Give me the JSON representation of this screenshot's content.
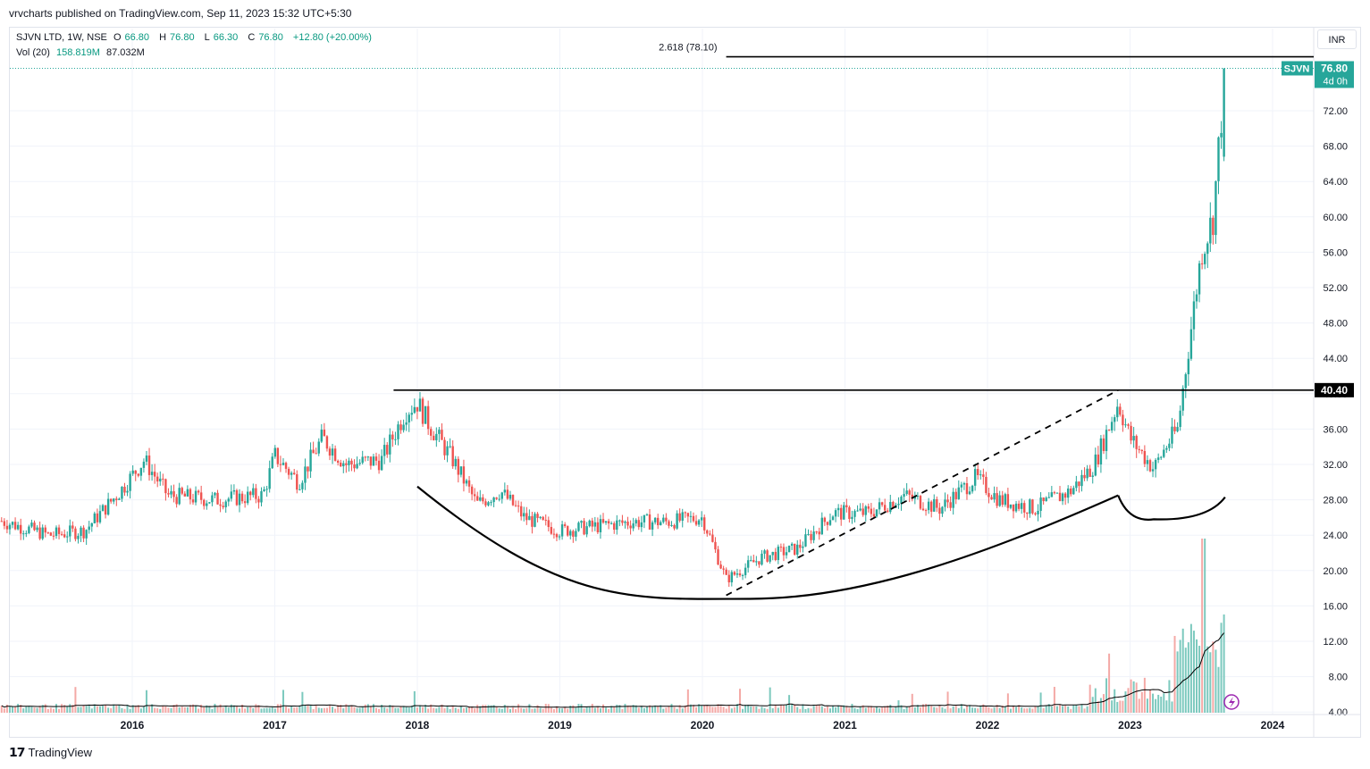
{
  "header": {
    "published": "vrvcharts published on TradingView.com, Sep 11, 2023 15:32 UTC+5:30"
  },
  "legend": {
    "symbol": "SJVN LTD, 1W, NSE",
    "open_label": "O",
    "open": "66.80",
    "high_label": "H",
    "high": "76.80",
    "low_label": "L",
    "low": "66.30",
    "close_label": "C",
    "close": "76.80",
    "change": "+12.80 (+20.00%)",
    "vol_label": "Vol (20)",
    "vol_value": "158.819M",
    "vol_ma": "87.032M"
  },
  "currency": "INR",
  "price_tag": {
    "symbol": "SJVN",
    "price": "76.80",
    "countdown": "4d 0h"
  },
  "level_tag": "40.40",
  "fib_label": "2.618 (78.10)",
  "footer": {
    "brand": "TradingView"
  },
  "colors": {
    "up": "#26a69a",
    "down": "#ef5350",
    "vol_up": "#7cc9be",
    "vol_down": "#f4a9a6",
    "line": "#000000",
    "grid": "#f0f3fa"
  },
  "chart_data": {
    "type": "candlestick",
    "timeframe": "1W",
    "x_ticks": [
      "2016",
      "2017",
      "2018",
      "2019",
      "2020",
      "2021",
      "2022",
      "2023",
      "2024"
    ],
    "y_ticks": [
      "4.00",
      "8.00",
      "12.00",
      "16.00",
      "20.00",
      "24.00",
      "28.00",
      "32.00",
      "36.00",
      "40.00",
      "44.00",
      "48.00",
      "52.00",
      "56.00",
      "60.00",
      "64.00",
      "68.00",
      "72.00"
    ],
    "ylim": [
      4,
      78.1
    ],
    "close_path": [
      [
        "2015-02",
        25.6
      ],
      [
        "2015-06",
        24.0
      ],
      [
        "2015-09",
        24.5
      ],
      [
        "2015-12",
        29.0
      ],
      [
        "2016-02",
        32.5
      ],
      [
        "2016-04",
        28.5
      ],
      [
        "2016-08",
        28.0
      ],
      [
        "2016-12",
        28.5
      ],
      [
        "2017-01",
        33.0
      ],
      [
        "2017-03",
        30.0
      ],
      [
        "2017-05",
        35.0
      ],
      [
        "2017-07",
        32.0
      ],
      [
        "2017-10",
        32.5
      ],
      [
        "2017-12",
        38.0
      ],
      [
        "2018-01",
        39.0
      ],
      [
        "2018-02",
        36.5
      ],
      [
        "2018-04",
        32.5
      ],
      [
        "2018-06",
        27.5
      ],
      [
        "2018-08",
        29.0
      ],
      [
        "2018-10",
        26.0
      ],
      [
        "2019-01",
        24.5
      ],
      [
        "2019-04",
        25.0
      ],
      [
        "2019-07",
        25.5
      ],
      [
        "2019-10",
        25.5
      ],
      [
        "2020-01",
        26.0
      ],
      [
        "2020-03",
        19.0
      ],
      [
        "2020-06",
        21.5
      ],
      [
        "2020-09",
        22.5
      ],
      [
        "2020-12",
        26.5
      ],
      [
        "2021-03",
        26.5
      ],
      [
        "2021-06",
        28.5
      ],
      [
        "2021-09",
        27.0
      ],
      [
        "2021-12",
        30.5
      ],
      [
        "2022-02",
        28.0
      ],
      [
        "2022-05",
        27.0
      ],
      [
        "2022-08",
        29.0
      ],
      [
        "2022-10",
        32.0
      ],
      [
        "2022-12",
        39.0
      ],
      [
        "2023-01",
        35.0
      ],
      [
        "2023-03",
        31.5
      ],
      [
        "2023-04",
        34.0
      ],
      [
        "2023-05",
        36.0
      ],
      [
        "2023-06",
        46.0
      ],
      [
        "2023-07",
        56.0
      ],
      [
        "2023-08",
        60.0
      ],
      [
        "2023-09",
        76.8
      ]
    ],
    "horizontal_levels": [
      {
        "price": 40.4,
        "label": "40.40",
        "from": "2017-11"
      },
      {
        "price": 78.1,
        "label": "2.618 (78.10)",
        "from": "2020-03"
      }
    ],
    "trendline": {
      "from": [
        "2020-03",
        17.2
      ],
      "to": [
        "2022-12",
        40.4
      ],
      "style": "dashed"
    },
    "cup_arc": {
      "from": [
        "2018-01",
        29.5
      ],
      "bottom": [
        "2020-05",
        16.8
      ],
      "to": [
        "2022-12",
        28.5
      ]
    },
    "handle_arc": {
      "from": [
        "2022-12",
        28.5
      ],
      "bottom": [
        "2023-03",
        25.8
      ],
      "to": [
        "2023-09",
        28.3
      ]
    },
    "last_price": 76.8,
    "volume_ma": 87.032,
    "volume_last": 158.819
  }
}
